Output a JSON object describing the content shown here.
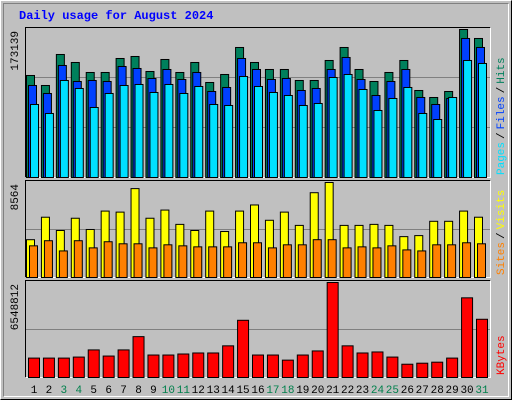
{
  "title": "Daily usage for August 2024",
  "categories": [
    "1",
    "2",
    "3",
    "4",
    "5",
    "6",
    "7",
    "8",
    "9",
    "10",
    "11",
    "12",
    "13",
    "14",
    "15",
    "16",
    "17",
    "18",
    "19",
    "20",
    "21",
    "22",
    "23",
    "24",
    "25",
    "26",
    "27",
    "28",
    "29",
    "30",
    "31"
  ],
  "category_colors": [
    "#000000",
    "#000000",
    "#00804c",
    "#00804c",
    "#000000",
    "#000000",
    "#000000",
    "#000000",
    "#000000",
    "#00804c",
    "#00804c",
    "#000000",
    "#000000",
    "#000000",
    "#000000",
    "#000000",
    "#00804c",
    "#00804c",
    "#000000",
    "#000000",
    "#000000",
    "#000000",
    "#000000",
    "#00804c",
    "#00804c",
    "#000000",
    "#000000",
    "#000000",
    "#000000",
    "#000000",
    "#00804c"
  ],
  "legend_separator": "/",
  "chart_data": [
    {
      "type": "bar",
      "ylim": [
        0,
        173139
      ],
      "yticks": [
        173139
      ],
      "series": [
        {
          "name": "Hits",
          "color": "#00805c",
          "values": [
            119340,
            107640,
            143910,
            134550,
            122850,
            122850,
            139230,
            141570,
            124020,
            138060,
            122850,
            134550,
            111150,
            120510,
            152100,
            134550,
            126360,
            126360,
            113490,
            113490,
            136890,
            152100,
            126360,
            112320,
            122850,
            136890,
            101790,
            93600,
            100620,
            173139,
            162630
          ]
        },
        {
          "name": "Files",
          "color": "#0040ff",
          "values": [
            107640,
            98280,
            131040,
            112320,
            113490,
            112320,
            129870,
            127530,
            115830,
            126360,
            114660,
            122850,
            100620,
            105300,
            139230,
            126360,
            114660,
            115830,
            101790,
            104130,
            126360,
            140400,
            114660,
            95940,
            112320,
            126360,
            93600,
            85410,
            92430,
            162630,
            152100
          ]
        },
        {
          "name": "Pages",
          "color": "#00e0ff",
          "values": [
            85410,
            74880,
            113490,
            104130,
            81900,
            98280,
            107640,
            108810,
            99450,
            108810,
            98280,
            106470,
            85410,
            84240,
            118170,
            106470,
            99450,
            95940,
            84240,
            86580,
            117000,
            120510,
            102960,
            78390,
            92430,
            105300,
            74880,
            67860,
            93600,
            136890,
            133380
          ]
        }
      ]
    },
    {
      "type": "bar",
      "ylim": [
        0,
        8564
      ],
      "yticks": [
        8564
      ],
      "series": [
        {
          "name": "Visits",
          "color": "#ffff00",
          "values": [
            3408,
            5434,
            4237,
            5342,
            4329,
            5987,
            5894,
            8013,
            5342,
            6079,
            4789,
            4237,
            5987,
            4145,
            5987,
            6539,
            5158,
            5894,
            4697,
            7644,
            8564,
            4697,
            4697,
            4789,
            4697,
            3684,
            3776,
            5066,
            5066,
            5987,
            5434
          ]
        },
        {
          "name": "Sites",
          "color": "#ff8000",
          "values": [
            2855,
            3316,
            2395,
            3316,
            2671,
            3224,
            3039,
            3039,
            2671,
            2947,
            2855,
            2763,
            2763,
            2763,
            3131,
            3131,
            2671,
            2947,
            2947,
            3408,
            3408,
            2671,
            2763,
            2671,
            2855,
            2487,
            2395,
            2947,
            2947,
            3131,
            3039
          ]
        }
      ]
    },
    {
      "type": "bar",
      "ylim": [
        0,
        6548812
      ],
      "yticks": [
        6548812
      ],
      "series": [
        {
          "name": "KBytes",
          "color": "#ff0000",
          "values": [
            1337923,
            1337923,
            1337923,
            1408340,
            1901259,
            1478757,
            1901259,
            2816680,
            1549174,
            1549174,
            1619591,
            1690008,
            1690008,
            2182927,
            3943352,
            1549174,
            1549174,
            1197089,
            1549174,
            1830842,
            6548812,
            2182927,
            1690008,
            1760425,
            1408340,
            915421,
            985838,
            1056255,
            1337923,
            5492526,
            4013769
          ]
        }
      ]
    }
  ]
}
